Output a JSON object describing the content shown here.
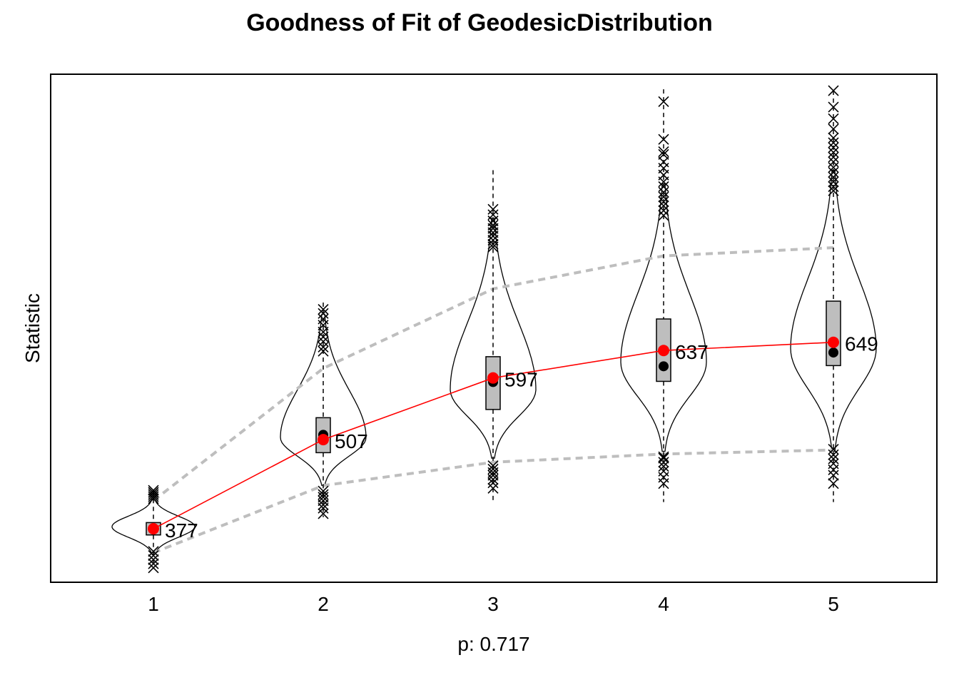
{
  "chart_data": {
    "type": "violin",
    "title": "Goodness of Fit of GeodesicDistribution",
    "xlabel": "p: 0.717",
    "ylabel": "Statistic",
    "categories": [
      "1",
      "2",
      "3",
      "4",
      "5"
    ],
    "observed": {
      "color": "#ff0000",
      "values": [
        377,
        507,
        597,
        637,
        649
      ],
      "labels": [
        "377",
        "507",
        "597",
        "637",
        "649"
      ]
    },
    "simulated_medians": [
      377,
      514,
      591,
      614,
      634
    ],
    "boxes": [
      {
        "q1": 368,
        "q3": 386
      },
      {
        "q1": 488,
        "q3": 539
      },
      {
        "q1": 551,
        "q3": 628
      },
      {
        "q1": 592,
        "q3": 683
      },
      {
        "q1": 615,
        "q3": 709
      }
    ],
    "whiskers": [
      {
        "low": 322,
        "high": 432
      },
      {
        "low": 394,
        "high": 707
      },
      {
        "low": 416,
        "high": 900
      },
      {
        "low": 416,
        "high": 1018
      },
      {
        "low": 416,
        "high": 1016
      }
    ],
    "outliers": [
      [
        320,
        326,
        332,
        338,
        344,
        421,
        424,
        427,
        430,
        433
      ],
      [
        399,
        407,
        412,
        418,
        423,
        427,
        432,
        636,
        642,
        650,
        657,
        664,
        674,
        683,
        691,
        697
      ],
      [
        436,
        444,
        449,
        455,
        459,
        464,
        469,
        788,
        792,
        798,
        804,
        809,
        815,
        820,
        826,
        835,
        843
      ],
      [
        443,
        452,
        461,
        468,
        474,
        480,
        482,
        834,
        841,
        848,
        854,
        861,
        868,
        876,
        883,
        893,
        903,
        912,
        923,
        927,
        945,
        1000
      ],
      [
        443,
        455,
        463,
        472,
        479,
        485,
        493,
        870,
        876,
        883,
        890,
        897,
        904,
        912,
        919,
        926,
        933,
        940,
        947,
        960,
        975,
        992,
        1016
      ]
    ],
    "violins": [
      {
        "center": 380,
        "half_width": 1.0,
        "range": [
          340,
          420
        ]
      },
      {
        "center": 510,
        "half_width": 0.5,
        "range": [
          440,
          690
        ]
      },
      {
        "center": 580,
        "half_width": 0.5,
        "range": [
          480,
          830
        ]
      },
      {
        "center": 620,
        "half_width": 0.5,
        "range": [
          490,
          880
        ]
      },
      {
        "center": 640,
        "half_width": 0.5,
        "range": [
          490,
          900
        ]
      }
    ],
    "interval_lower": [
      342,
      440,
      474,
      486,
      492
    ],
    "interval_upper": [
      418,
      611,
      727,
      775,
      787
    ],
    "ylim": [
      299,
      1040
    ],
    "grid": false,
    "interval_color": "#bebebe",
    "box_fill": "#bebebe"
  }
}
